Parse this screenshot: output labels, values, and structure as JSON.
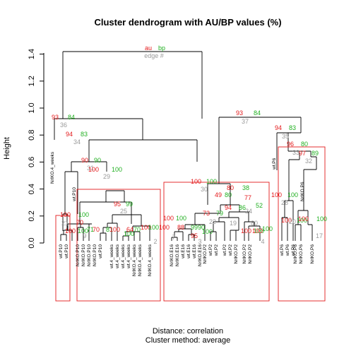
{
  "title": "Cluster dendrogram with AU/BP values (%)",
  "ylabel": "Height",
  "yticks": [
    "0.0",
    "0.2",
    "0.4",
    "0.6",
    "0.8",
    "1.0",
    "1.2",
    "1.4"
  ],
  "footer": {
    "distance": "Distance:  correlation",
    "method": "Cluster method: average"
  },
  "legend": {
    "au": "au",
    "bp": "bp",
    "edge": "edge #"
  },
  "colors": {
    "au": "#e41a1c",
    "bp": "#22b022",
    "edge": "#9a9a9a",
    "box": "#e41a1c"
  },
  "leaves": [
    "wt.P10",
    "wt.P10",
    "NrlKO.P10",
    "NrlKO.P10",
    "NrlKO.P10",
    "NrlKO.P10",
    "wt.P10",
    "wt.4_weeks",
    "wt.4_weeks",
    "wt.4_weeks",
    "wt.4_weeks",
    "NrlKO.4_weeks",
    "NrlKO.4_weeks",
    "NrlKO.4_weeks",
    "NrlKO.E16",
    "NrlKO.E16",
    "wt.E16",
    "wt.E16",
    "wt.E16",
    "NrlKO.E16",
    "NrlKO.P2",
    "wt.P2",
    "wt.P2",
    "wt.P2",
    "wt.P2",
    "NrlKO.P2",
    "NrlKO.P2",
    "NrlKO.P2",
    "wt.P6",
    "wt.P6",
    "wt.P6",
    "NrlKO.P6",
    "NrlKO.P6",
    "NrlKO.P6"
  ],
  "outlier_labels": [
    "NrlKO.4_weeks",
    "wt.P10",
    "wt.P6",
    "NrlKO.P6"
  ],
  "edges": [
    {
      "au": "100",
      "bp": "100",
      "id": "1"
    },
    {
      "au": "100",
      "bp": "100",
      "id": "2"
    },
    {
      "au": "95",
      "bp": "90",
      "id": "3"
    },
    {
      "au": "100",
      "bp": "100",
      "id": "4"
    },
    {
      "au": "100",
      "bp": "100",
      "id": "5"
    },
    {
      "au": "100",
      "bp": "100",
      "id": "6"
    },
    {
      "au": "100",
      "bp": "100",
      "id": "7"
    },
    {
      "au": "100",
      "bp": "100",
      "id": "8"
    },
    {
      "au": "70",
      "bp": "81",
      "id": "9"
    },
    {
      "au": "100",
      "bp": "100",
      "id": "10"
    },
    {
      "au": "88",
      "bp": "99",
      "id": "11"
    },
    {
      "au": "99",
      "bp": "100",
      "id": "12"
    },
    {
      "au": "70",
      "bp": "71",
      "id": "13"
    },
    {
      "au": "100",
      "bp": "100",
      "id": "14"
    },
    {
      "au": "64",
      "bp": "70",
      "id": "15"
    },
    {
      "au": "100",
      "bp": "100",
      "id": "16"
    },
    {
      "au": "100",
      "bp": "100",
      "id": "17"
    },
    {
      "au": "94",
      "bp": "86",
      "id": "18"
    },
    {
      "au": "80",
      "bp": "89",
      "id": "19"
    },
    {
      "au": "100",
      "bp": "100",
      "id": "20"
    },
    {
      "au": "100",
      "bp": "100",
      "id": "21"
    },
    {
      "au": "73",
      "bp": "79",
      "id": "22"
    },
    {
      "au": "49",
      "bp": "80",
      "id": "23"
    },
    {
      "au": "77",
      "bp": "52",
      "id": "24"
    },
    {
      "au": "95",
      "bp": "99",
      "id": "25"
    },
    {
      "au": "80",
      "bp": "38",
      "id": "26"
    },
    {
      "au": "96",
      "bp": "80",
      "id": "27"
    },
    {
      "au": "100",
      "bp": "100",
      "id": "28"
    },
    {
      "au": "100",
      "bp": "100",
      "id": "29"
    },
    {
      "au": "100",
      "bp": "100",
      "id": "30"
    },
    {
      "au": "90",
      "bp": "90",
      "id": "31"
    },
    {
      "au": "97",
      "bp": "89",
      "id": "32"
    },
    {
      "au": "100",
      "bp": "100",
      "id": "33"
    },
    {
      "au": "94",
      "bp": "83",
      "id": "34"
    },
    {
      "au": "94",
      "bp": "83",
      "id": "35"
    },
    {
      "au": "93",
      "bp": "84",
      "id": "36"
    },
    {
      "au": "93",
      "bp": "84",
      "id": "37"
    }
  ]
}
